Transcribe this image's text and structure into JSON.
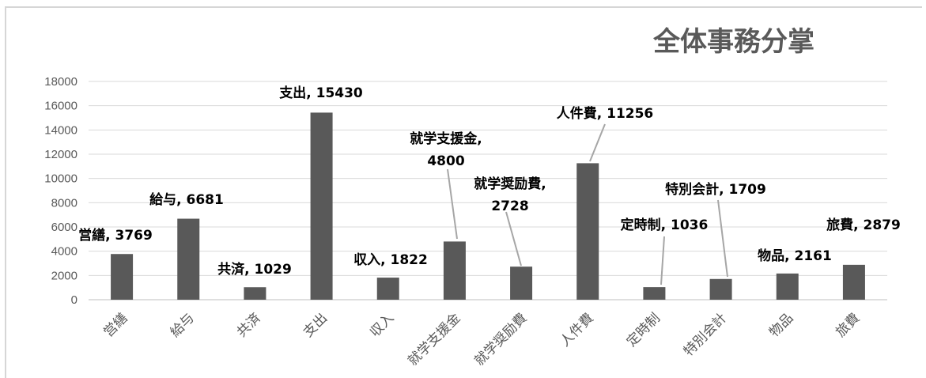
{
  "chart_data": {
    "type": "bar",
    "title": "全体事務分掌",
    "categories": [
      "営繕",
      "給与",
      "共済",
      "支出",
      "収入",
      "就学支援金",
      "就学奨励費",
      "人件費",
      "定時制",
      "特別会計",
      "物品",
      "旅費"
    ],
    "values": [
      3769,
      6681,
      1029,
      15430,
      1822,
      4800,
      2728,
      11256,
      1036,
      1709,
      2161,
      2879
    ],
    "data_labels": [
      [
        "営繕, 3769"
      ],
      [
        "給与, 6681"
      ],
      [
        "共済, 1029"
      ],
      [
        "支出, 15430"
      ],
      [
        "収入, 1822"
      ],
      [
        "就学支援金,",
        "4800"
      ],
      [
        "就学奨励費,",
        "2728"
      ],
      [
        "人件費, 11256"
      ],
      [
        "定時制, 1036"
      ],
      [
        "特別会計, 1709"
      ],
      [
        "物品, 2161"
      ],
      [
        "旅費, 2879"
      ]
    ],
    "ylim": [
      0,
      18000
    ],
    "yticks": [
      0,
      2000,
      4000,
      6000,
      8000,
      10000,
      12000,
      14000,
      16000,
      18000
    ],
    "grid": true,
    "legend": "none",
    "bar_color": "#595959",
    "grid_color": "#d9d9d9",
    "text_color": "#595959"
  }
}
